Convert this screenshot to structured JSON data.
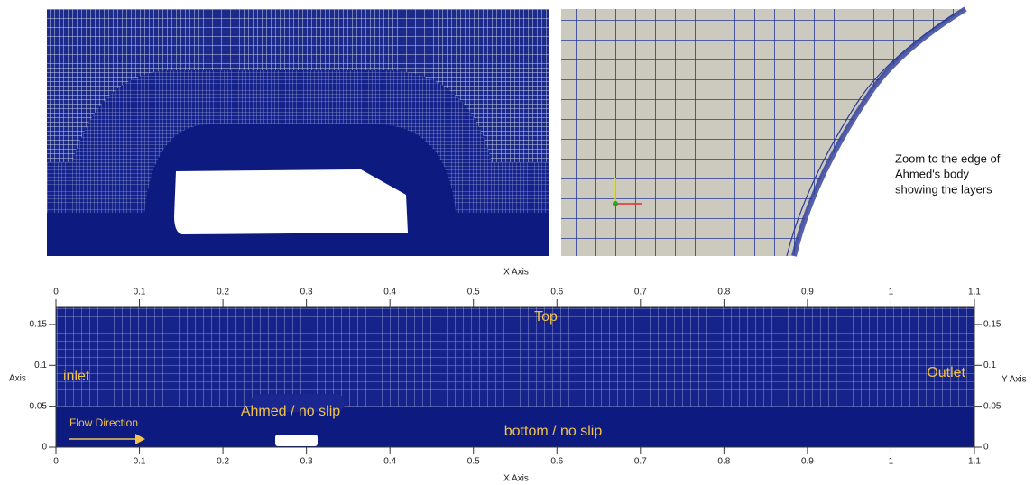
{
  "zoom_caption": [
    "Zoom to the edge of",
    "Ahmed's body",
    "showing the layers"
  ],
  "domain_plot": {
    "x_axis_title": "X Axis",
    "y_axis_title_left": "Axis",
    "y_axis_title_right": "Y Axis",
    "xlim": [
      0,
      1.1
    ],
    "ylim": [
      0,
      0.172
    ],
    "xticks": [
      0,
      0.1,
      0.2,
      0.3,
      0.4,
      0.5,
      0.6,
      0.7,
      0.8,
      0.9,
      1,
      1.1
    ],
    "yticks": [
      0,
      0.05,
      0.1,
      0.15
    ],
    "annotations": {
      "top": "Top",
      "inlet": "inlet",
      "outlet": "Outlet",
      "ahmed": "Ahmed / no slip",
      "bottom": "bottom / no slip",
      "flow": "Flow Direction"
    }
  }
}
